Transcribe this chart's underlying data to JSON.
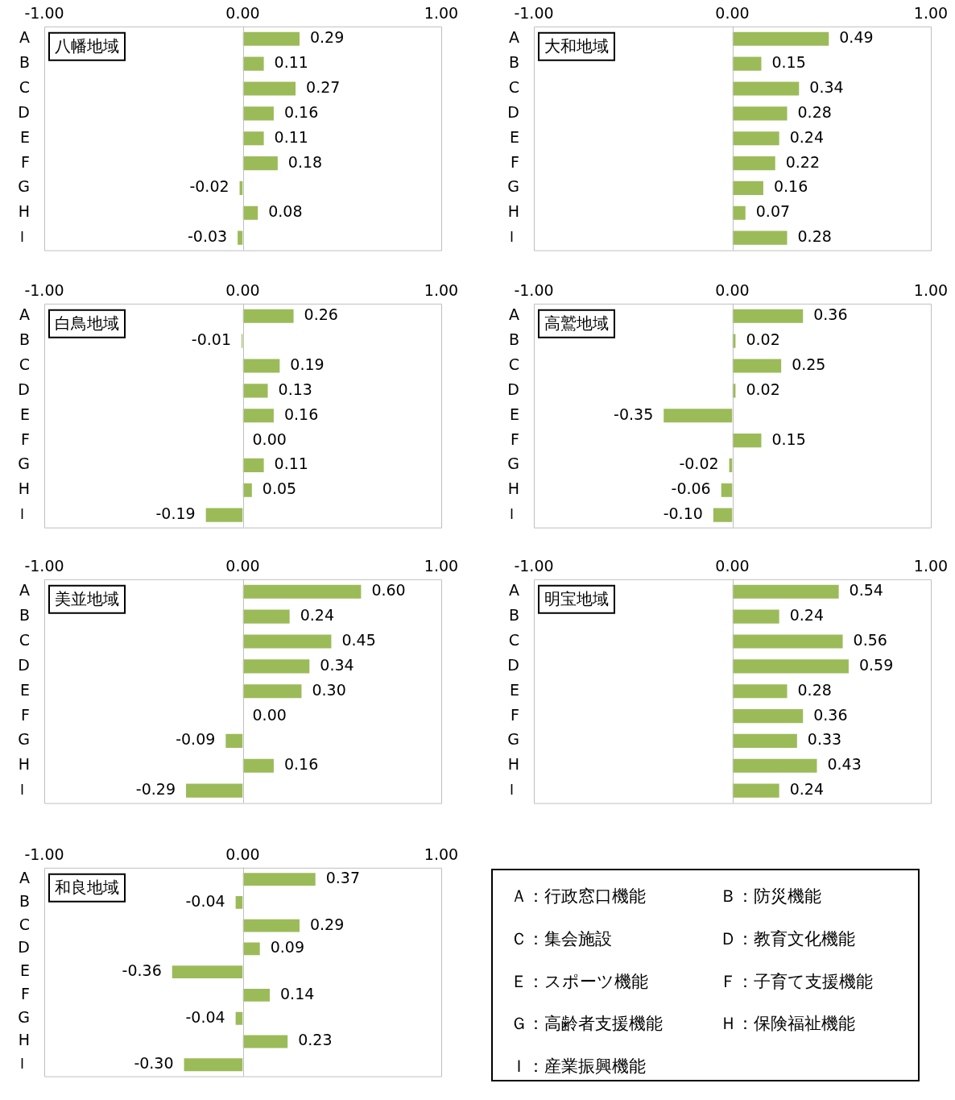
{
  "chart_data": [
    {
      "type": "bar",
      "orientation": "horizontal",
      "title": "八幡地域",
      "categories": [
        "A",
        "B",
        "C",
        "D",
        "E",
        "F",
        "G",
        "H",
        "Ｉ"
      ],
      "values": [
        0.29,
        0.11,
        0.27,
        0.16,
        0.11,
        0.18,
        -0.02,
        0.08,
        -0.03
      ],
      "value_labels": [
        "0.29",
        "0.11",
        "0.27",
        "0.16",
        "0.11",
        "0.18",
        "-0.02",
        "0.08",
        "-0.03"
      ],
      "color": "#9bbb59",
      "xlim": [
        -1,
        1
      ],
      "xticks": [
        {
          "value": -1,
          "label": "-1.00"
        },
        {
          "value": 0,
          "label": "0.00"
        },
        {
          "value": 1,
          "label": "1.00"
        }
      ]
    },
    {
      "type": "bar",
      "orientation": "horizontal",
      "title": "大和地域",
      "categories": [
        "A",
        "B",
        "C",
        "D",
        "E",
        "F",
        "G",
        "H",
        "Ｉ"
      ],
      "values": [
        0.49,
        0.15,
        0.34,
        0.28,
        0.24,
        0.22,
        0.16,
        0.07,
        0.28
      ],
      "value_labels": [
        "0.49",
        "0.15",
        "0.34",
        "0.28",
        "0.24",
        "0.22",
        "0.16",
        "0.07",
        "0.28"
      ],
      "color": "#9bbb59",
      "xlim": [
        -1,
        1
      ],
      "xticks": [
        {
          "value": -1,
          "label": "-1.00"
        },
        {
          "value": 0,
          "label": "0.00"
        },
        {
          "value": 1,
          "label": "1.00"
        }
      ]
    },
    {
      "type": "bar",
      "orientation": "horizontal",
      "title": "白鳥地域",
      "categories": [
        "A",
        "B",
        "C",
        "D",
        "E",
        "F",
        "G",
        "H",
        "Ｉ"
      ],
      "values": [
        0.26,
        -0.01,
        0.19,
        0.13,
        0.16,
        0,
        0.11,
        0.05,
        -0.19
      ],
      "value_labels": [
        "0.26",
        "-0.01",
        "0.19",
        "0.13",
        "0.16",
        "0.00",
        "0.11",
        "0.05",
        "-0.19"
      ],
      "color": "#9bbb59",
      "xlim": [
        -1,
        1
      ],
      "xticks": [
        {
          "value": -1,
          "label": "-1.00"
        },
        {
          "value": 0,
          "label": "0.00"
        },
        {
          "value": 1,
          "label": "1.00"
        }
      ]
    },
    {
      "type": "bar",
      "orientation": "horizontal",
      "title": "高鷲地域",
      "categories": [
        "A",
        "B",
        "C",
        "D",
        "E",
        "F",
        "G",
        "H",
        "Ｉ"
      ],
      "values": [
        0.36,
        0.02,
        0.25,
        0.02,
        -0.35,
        0.15,
        -0.02,
        -0.06,
        -0.1
      ],
      "value_labels": [
        "0.36",
        "0.02",
        "0.25",
        "0.02",
        "-0.35",
        "0.15",
        "-0.02",
        "-0.06",
        "-0.10"
      ],
      "color": "#9bbb59",
      "xlim": [
        -1,
        1
      ],
      "xticks": [
        {
          "value": -1,
          "label": "-1.00"
        },
        {
          "value": 0,
          "label": "0.00"
        },
        {
          "value": 1,
          "label": "1.00"
        }
      ]
    },
    {
      "type": "bar",
      "orientation": "horizontal",
      "title": "美並地域",
      "categories": [
        "A",
        "B",
        "C",
        "D",
        "E",
        "F",
        "G",
        "H",
        "Ｉ"
      ],
      "values": [
        0.6,
        0.24,
        0.45,
        0.34,
        0.3,
        0,
        -0.09,
        0.16,
        -0.29
      ],
      "value_labels": [
        "0.60",
        "0.24",
        "0.45",
        "0.34",
        "0.30",
        "0.00",
        "-0.09",
        "0.16",
        "-0.29"
      ],
      "color": "#9bbb59",
      "xlim": [
        -1,
        1
      ],
      "xticks": [
        {
          "value": -1,
          "label": "-1.00"
        },
        {
          "value": 0,
          "label": "0.00"
        },
        {
          "value": 1,
          "label": "1.00"
        }
      ]
    },
    {
      "type": "bar",
      "orientation": "horizontal",
      "title": "明宝地域",
      "categories": [
        "A",
        "B",
        "C",
        "D",
        "E",
        "F",
        "G",
        "H",
        "Ｉ"
      ],
      "values": [
        0.54,
        0.24,
        0.56,
        0.59,
        0.28,
        0.36,
        0.33,
        0.43,
        0.24
      ],
      "value_labels": [
        "0.54",
        "0.24",
        "0.56",
        "0.59",
        "0.28",
        "0.36",
        "0.33",
        "0.43",
        "0.24"
      ],
      "color": "#9bbb59",
      "xlim": [
        -1,
        1
      ],
      "xticks": [
        {
          "value": -1,
          "label": "-1.00"
        },
        {
          "value": 0,
          "label": "0.00"
        },
        {
          "value": 1,
          "label": "1.00"
        }
      ]
    },
    {
      "type": "bar",
      "orientation": "horizontal",
      "title": "和良地域",
      "categories": [
        "A",
        "B",
        "C",
        "D",
        "E",
        "F",
        "G",
        "H",
        "Ｉ"
      ],
      "values": [
        0.37,
        -0.04,
        0.29,
        0.09,
        -0.36,
        0.14,
        -0.04,
        0.23,
        -0.3
      ],
      "value_labels": [
        "0.37",
        "-0.04",
        "0.29",
        "0.09",
        "-0.36",
        "0.14",
        "-0.04",
        "0.23",
        "-0.30"
      ],
      "color": "#9bbb59",
      "xlim": [
        -1,
        1
      ],
      "xticks": [
        {
          "value": -1,
          "label": "-1.00"
        },
        {
          "value": 0,
          "label": "0.00"
        },
        {
          "value": 1,
          "label": "1.00"
        }
      ]
    },
    {
      "type": "other",
      "annotations": [
        "Ａ：行政窓口機能",
        "Ｂ：防災機能",
        "Ｃ：集会施設",
        "Ｄ：教育文化機能",
        "Ｅ：スポーツ機能",
        "Ｆ：子育て支援機能",
        "Ｇ：高齢者支援機能",
        "Ｈ：保険福祉機能",
        "Ｉ：産業振興機能"
      ]
    }
  ]
}
